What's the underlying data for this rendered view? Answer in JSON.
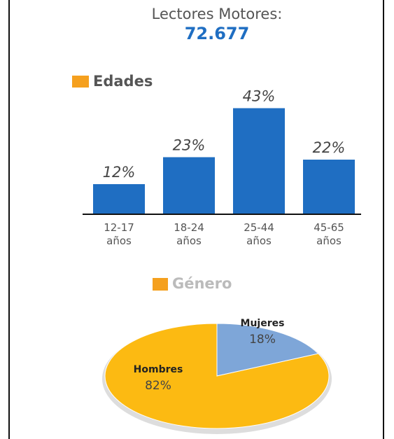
{
  "header": {
    "title": "Lectores Motores:",
    "value": "72.677"
  },
  "chart_data": [
    {
      "type": "bar",
      "title": "Edades",
      "title_marker_color": "#f5a01e",
      "categories": [
        "12-17 años",
        "18-24 años",
        "25-44 años",
        "45-65 años"
      ],
      "values": [
        12,
        23,
        43,
        22
      ],
      "value_labels": [
        "12%",
        "23%",
        "43%",
        "22%"
      ],
      "color": "#1f6ec2"
    },
    {
      "type": "pie",
      "title": "Género",
      "title_marker_color": "#f5a01e",
      "categories": [
        "Mujeres",
        "Hombres"
      ],
      "values": [
        18,
        82
      ],
      "value_labels": [
        "18%",
        "82%"
      ],
      "colors": [
        "#7ea6d8",
        "#fcba12"
      ]
    }
  ]
}
